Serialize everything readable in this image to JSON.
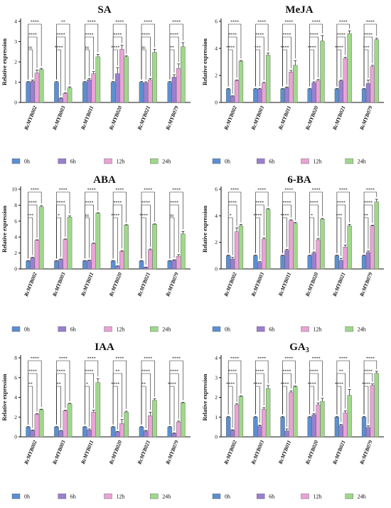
{
  "chart_data": [
    {
      "type": "bar",
      "title": "SA",
      "ylabel": "Relative expression",
      "ylim": [
        0,
        4
      ],
      "yticks": [
        0,
        1,
        2,
        3,
        4
      ],
      "categories": [
        "RcMYB002",
        "RcMYB003",
        "RcMYB011",
        "RcMYB020",
        "RcMYB021",
        "RcMYB079"
      ],
      "series": [
        {
          "name": "0h",
          "color": "#5b8fd1",
          "values": [
            1.0,
            1.0,
            1.0,
            1.0,
            1.0,
            1.0
          ],
          "errors": [
            0.03,
            0.03,
            0.03,
            0.03,
            0.03,
            0.03
          ]
        },
        {
          "name": "6h",
          "color": "#9b7fd0",
          "values": [
            1.05,
            0.2,
            1.12,
            1.42,
            0.97,
            1.25
          ],
          "errors": [
            0.06,
            0.03,
            0.06,
            0.3,
            0.05,
            0.12
          ]
        },
        {
          "name": "12h",
          "color": "#e9a3d6",
          "values": [
            1.45,
            0.45,
            1.42,
            2.62,
            1.12,
            1.68
          ],
          "errors": [
            0.15,
            0.03,
            0.1,
            0.2,
            0.06,
            0.22
          ]
        },
        {
          "name": "24h",
          "color": "#9fd88b",
          "values": [
            1.62,
            0.72,
            2.25,
            2.25,
            2.47,
            2.75
          ],
          "errors": [
            0.06,
            0.05,
            0.12,
            0.05,
            0.15,
            0.2
          ]
        }
      ],
      "significance": [
        [
          "ns",
          "****",
          "****"
        ],
        [
          "****",
          "****",
          "**"
        ],
        [
          "ns",
          "****",
          "****"
        ],
        [
          "****",
          "****",
          "****"
        ],
        [
          "ns",
          "****",
          "****"
        ],
        [
          "**",
          "****",
          "****"
        ]
      ]
    },
    {
      "type": "bar",
      "title": "MeJA",
      "ylabel": "Relative expression",
      "ylim": [
        0,
        6
      ],
      "yticks": [
        0,
        2,
        4,
        6
      ],
      "categories": [
        "RcMYB002",
        "RcMYB003",
        "RcMYB011",
        "RcMYB020",
        "RcMYB021",
        "RcMYB079"
      ],
      "series": [
        {
          "name": "0h",
          "color": "#5b8fd1",
          "values": [
            1.0,
            1.0,
            1.0,
            1.0,
            1.0,
            1.0
          ],
          "errors": [
            0.03,
            0.03,
            0.03,
            0.03,
            0.03,
            0.03
          ]
        },
        {
          "name": "6h",
          "color": "#9b7fd0",
          "values": [
            0.45,
            1.0,
            1.1,
            1.45,
            1.6,
            1.4
          ],
          "errors": [
            0.04,
            0.04,
            0.05,
            0.08,
            0.06,
            0.25
          ]
        },
        {
          "name": "12h",
          "color": "#e9a3d6",
          "values": [
            1.62,
            1.42,
            2.25,
            1.62,
            3.25,
            2.65
          ],
          "errors": [
            0.05,
            0.08,
            0.12,
            0.08,
            0.1,
            0.1
          ]
        },
        {
          "name": "24h",
          "color": "#9fd88b",
          "values": [
            3.05,
            3.5,
            2.75,
            4.55,
            5.1,
            4.65
          ],
          "errors": [
            0.05,
            0.15,
            0.35,
            0.4,
            0.2,
            0.1
          ]
        }
      ],
      "significance": [
        [
          "****",
          "****",
          "****"
        ],
        [
          "***",
          "****",
          "****"
        ],
        [
          "****",
          "****",
          "****"
        ],
        [
          "****",
          "****",
          "****"
        ],
        [
          "****",
          "****",
          "****"
        ],
        [
          "***",
          "****",
          "****"
        ]
      ]
    },
    {
      "type": "bar",
      "title": "ABA",
      "ylabel": "Relative expression",
      "ylim": [
        0,
        10
      ],
      "yticks": [
        0,
        2,
        4,
        6,
        8,
        10
      ],
      "categories": [
        "RcMYB002",
        "RcMYB003",
        "RcMYB011",
        "RcMYB020",
        "RcMYB021",
        "RcMYB079"
      ],
      "series": [
        {
          "name": "0h",
          "color": "#5b8fd1",
          "values": [
            1.0,
            1.0,
            1.0,
            1.0,
            1.0,
            1.0
          ],
          "errors": [
            0.04,
            0.04,
            0.04,
            0.04,
            0.04,
            0.04
          ]
        },
        {
          "name": "6h",
          "color": "#9b7fd0",
          "values": [
            1.4,
            1.2,
            1.05,
            0.35,
            0.2,
            1.1
          ],
          "errors": [
            0.06,
            0.05,
            0.05,
            0.05,
            0.04,
            0.05
          ]
        },
        {
          "name": "12h",
          "color": "#e9a3d6",
          "values": [
            3.6,
            3.7,
            3.2,
            2.2,
            2.4,
            1.6
          ],
          "errors": [
            0.06,
            0.06,
            0.06,
            0.1,
            0.1,
            0.2
          ]
        },
        {
          "name": "24h",
          "color": "#9fd88b",
          "values": [
            7.8,
            6.5,
            7.0,
            5.5,
            5.6,
            4.4
          ],
          "errors": [
            0.15,
            0.15,
            0.05,
            0.05,
            0.05,
            0.3
          ]
        }
      ],
      "significance": [
        [
          "***",
          "****",
          "****"
        ],
        [
          "*",
          "****",
          "****"
        ],
        [
          "ns",
          "****",
          "****"
        ],
        [
          "****",
          "****",
          "****"
        ],
        [
          "****",
          "****",
          "****"
        ],
        [
          "ns",
          "****",
          "****"
        ]
      ]
    },
    {
      "type": "bar",
      "title": "6-BA",
      "ylabel": "Relative expression",
      "ylim": [
        0,
        6
      ],
      "yticks": [
        0,
        2,
        4,
        6
      ],
      "categories": [
        "RcMYB002",
        "RcMYB003",
        "RcMYB011",
        "RcMYB020",
        "RcMYB021",
        "RcMYB079"
      ],
      "series": [
        {
          "name": "0h",
          "color": "#5b8fd1",
          "values": [
            1.0,
            1.0,
            1.0,
            1.0,
            1.0,
            1.0
          ],
          "errors": [
            0.04,
            0.04,
            0.04,
            0.04,
            0.04,
            0.04
          ]
        },
        {
          "name": "6h",
          "color": "#9b7fd0",
          "values": [
            0.75,
            0.5,
            1.4,
            1.2,
            0.65,
            1.25
          ],
          "errors": [
            0.12,
            0.05,
            0.08,
            0.08,
            0.15,
            0.1
          ]
        },
        {
          "name": "12h",
          "color": "#e9a3d6",
          "values": [
            2.8,
            2.25,
            3.65,
            2.2,
            1.65,
            3.25
          ],
          "errors": [
            0.3,
            0.1,
            0.05,
            0.1,
            0.15,
            0.05
          ]
        },
        {
          "name": "24h",
          "color": "#9fd88b",
          "values": [
            3.25,
            4.5,
            3.45,
            3.75,
            3.25,
            5.05
          ],
          "errors": [
            0.1,
            0.05,
            0.05,
            0.05,
            0.1,
            0.2
          ]
        }
      ],
      "significance": [
        [
          "*",
          "****",
          "****"
        ],
        [
          "****",
          "****",
          "****"
        ],
        [
          "****",
          "****",
          "****"
        ],
        [
          "*",
          "****",
          "****"
        ],
        [
          "***",
          "****",
          "****"
        ],
        [
          "**",
          "****",
          "****"
        ]
      ]
    },
    {
      "type": "bar",
      "title": "IAA",
      "ylabel": "Relative expression",
      "ylim": [
        0,
        8
      ],
      "yticks": [
        0,
        2,
        4,
        6,
        8
      ],
      "categories": [
        "RcMYB002",
        "RcMYB003",
        "RcMYB011",
        "RcMYB020",
        "RcMYB021",
        "RcMYB079"
      ],
      "series": [
        {
          "name": "0h",
          "color": "#5b8fd1",
          "values": [
            1.0,
            1.0,
            1.0,
            1.0,
            1.0,
            1.0
          ],
          "errors": [
            0.04,
            0.04,
            0.04,
            0.04,
            0.04,
            0.04
          ]
        },
        {
          "name": "6h",
          "color": "#9b7fd0",
          "values": [
            0.65,
            0.6,
            0.7,
            0.5,
            0.6,
            0.35
          ],
          "errors": [
            0.05,
            0.05,
            0.1,
            0.05,
            0.05,
            0.05
          ]
        },
        {
          "name": "12h",
          "color": "#e9a3d6",
          "values": [
            2.3,
            2.65,
            2.5,
            1.35,
            2.15,
            1.5
          ],
          "errors": [
            0.05,
            0.05,
            0.2,
            0.4,
            0.35,
            0.1
          ]
        },
        {
          "name": "24h",
          "color": "#9fd88b",
          "values": [
            2.75,
            3.35,
            5.5,
            2.5,
            3.7,
            3.45
          ],
          "errors": [
            0.05,
            0.05,
            0.4,
            0.1,
            0.15,
            0.05
          ]
        }
      ],
      "significance": [
        [
          "**",
          "****",
          "****"
        ],
        [
          "**",
          "****",
          "****"
        ],
        [
          "*",
          "****",
          "****"
        ],
        [
          "****",
          "**",
          "****"
        ],
        [
          "**",
          "****",
          "****"
        ],
        [
          "****",
          "****",
          "****"
        ]
      ]
    },
    {
      "type": "bar",
      "title": "GA3",
      "ylabel": "Relative expression",
      "ylim": [
        0,
        4
      ],
      "yticks": [
        0,
        1,
        2,
        3,
        4
      ],
      "categories": [
        "RcMYB002",
        "RcMYB003",
        "RcMYB011",
        "RcMYB020",
        "RcMYB021",
        "RcMYB079"
      ],
      "series": [
        {
          "name": "0h",
          "color": "#5b8fd1",
          "values": [
            1.0,
            1.0,
            1.0,
            1.0,
            1.0,
            1.0
          ],
          "errors": [
            0.03,
            0.03,
            0.03,
            0.03,
            0.03,
            0.03
          ]
        },
        {
          "name": "6h",
          "color": "#9b7fd0",
          "values": [
            0.33,
            0.55,
            0.3,
            1.12,
            0.58,
            0.48
          ],
          "errors": [
            0.03,
            0.05,
            0.1,
            0.05,
            0.05,
            0.08
          ]
        },
        {
          "name": "12h",
          "color": "#e9a3d6",
          "values": [
            1.62,
            1.4,
            2.25,
            1.62,
            1.22,
            2.6
          ],
          "errors": [
            0.05,
            0.08,
            0.08,
            0.1,
            0.1,
            0.08
          ]
        },
        {
          "name": "24h",
          "color": "#9fd88b",
          "values": [
            2.05,
            2.45,
            2.55,
            1.8,
            2.1,
            3.22
          ],
          "errors": [
            0.03,
            0.15,
            0.03,
            0.15,
            0.3,
            0.1
          ]
        }
      ],
      "significance": [
        [
          "****",
          "****",
          "****"
        ],
        [
          "****",
          "****",
          "****"
        ],
        [
          "****",
          "****",
          "****"
        ],
        [
          "****",
          "****",
          "****"
        ],
        [
          "****",
          "**",
          "****"
        ],
        [
          "****",
          "****",
          "****"
        ]
      ]
    }
  ]
}
